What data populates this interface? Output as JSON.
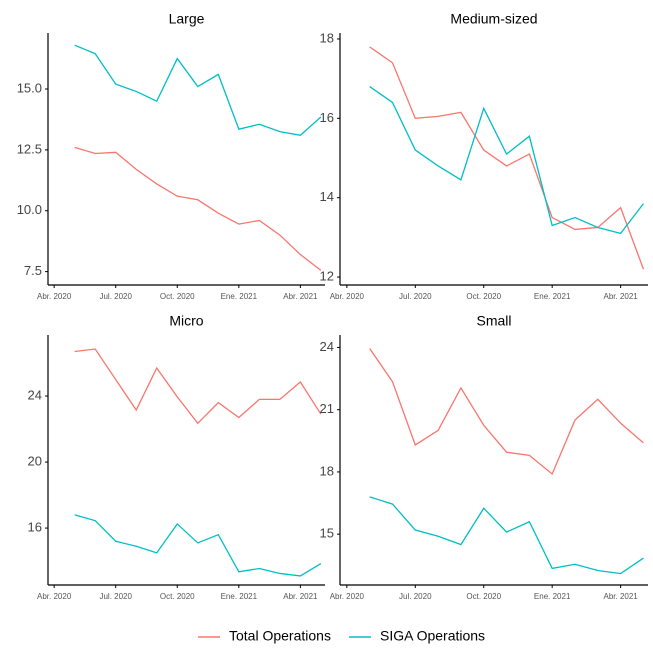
{
  "chart_data": [
    {
      "type": "line",
      "title": "Large",
      "x": [
        1,
        2,
        3,
        4,
        5,
        6,
        7,
        8,
        9,
        10,
        11,
        12,
        13
      ],
      "series": [
        {
          "name": "Total Operations",
          "color": "#f8766d",
          "values": [
            12.6,
            12.35,
            12.4,
            11.7,
            11.1,
            10.6,
            10.45,
            9.9,
            9.45,
            9.6,
            9.0,
            8.2,
            7.55
          ]
        },
        {
          "name": "SIGA Operations",
          "color": "#00bfc4",
          "values": [
            16.8,
            16.45,
            15.2,
            14.9,
            14.5,
            16.25,
            15.1,
            15.6,
            13.35,
            13.55,
            13.25,
            13.1,
            13.85
          ]
        }
      ],
      "xlim": [
        -0.3,
        13.2
      ],
      "xticks": [
        {
          "value": 0,
          "label": "Abr. 2020"
        },
        {
          "value": 3,
          "label": "Jul. 2020"
        },
        {
          "value": 6,
          "label": "Oct. 2020"
        },
        {
          "value": 9,
          "label": "Ene. 2021"
        },
        {
          "value": 12,
          "label": "Abr. 2021"
        }
      ],
      "ylim": [
        6.95,
        17.3
      ],
      "yticks": [
        {
          "value": 7.5,
          "label": "7.5"
        },
        {
          "value": 10,
          "label": "10.0"
        },
        {
          "value": 12.5,
          "label": "12.5"
        },
        {
          "value": 15,
          "label": "15.0"
        }
      ]
    },
    {
      "type": "line",
      "title": "Medium-sized",
      "x": [
        1,
        2,
        3,
        4,
        5,
        6,
        7,
        8,
        9,
        10,
        11,
        12,
        13
      ],
      "series": [
        {
          "name": "Total Operations",
          "color": "#f8766d",
          "values": [
            17.8,
            17.4,
            16.0,
            16.05,
            16.15,
            15.2,
            14.8,
            15.1,
            13.5,
            13.2,
            13.25,
            13.75,
            12.2
          ]
        },
        {
          "name": "SIGA Operations",
          "color": "#00bfc4",
          "values": [
            16.8,
            16.4,
            15.2,
            14.8,
            14.45,
            16.25,
            15.1,
            15.55,
            13.3,
            13.5,
            13.25,
            13.1,
            13.85
          ]
        }
      ],
      "xlim": [
        -0.3,
        13.2
      ],
      "xticks": [
        {
          "value": 0,
          "label": "Abr. 2020"
        },
        {
          "value": 3,
          "label": "Jul. 2020"
        },
        {
          "value": 6,
          "label": "Oct. 2020"
        },
        {
          "value": 9,
          "label": "Ene. 2021"
        },
        {
          "value": 12,
          "label": "Abr. 2021"
        }
      ],
      "ylim": [
        11.8,
        18.15
      ],
      "yticks": [
        12,
        14,
        16,
        18
      ]
    },
    {
      "type": "line",
      "title": "Micro",
      "x": [
        1,
        2,
        3,
        4,
        5,
        6,
        7,
        8,
        9,
        10,
        11,
        12,
        13
      ],
      "series": [
        {
          "name": "Total Operations",
          "color": "#f8766d",
          "values": [
            26.7,
            26.85,
            25.0,
            23.15,
            25.7,
            23.95,
            22.35,
            23.6,
            22.7,
            23.8,
            23.8,
            24.85,
            22.9
          ]
        },
        {
          "name": "SIGA Operations",
          "color": "#00bfc4",
          "values": [
            16.8,
            16.45,
            15.2,
            14.9,
            14.5,
            16.25,
            15.1,
            15.6,
            13.35,
            13.55,
            13.25,
            13.1,
            13.85
          ]
        }
      ],
      "xlim": [
        -0.3,
        13.2
      ],
      "xticks": [
        {
          "value": 0,
          "label": "Abr. 2020"
        },
        {
          "value": 3,
          "label": "Jul. 2020"
        },
        {
          "value": 6,
          "label": "Oct. 2020"
        },
        {
          "value": 9,
          "label": "Ene. 2021"
        },
        {
          "value": 12,
          "label": "Abr. 2021"
        }
      ],
      "ylim": [
        12.55,
        27.7
      ],
      "yticks": [
        16,
        20,
        24
      ]
    },
    {
      "type": "line",
      "title": "Small",
      "x": [
        1,
        2,
        3,
        4,
        5,
        6,
        7,
        8,
        9,
        10,
        11,
        12,
        13
      ],
      "series": [
        {
          "name": "Total Operations",
          "color": "#f8766d",
          "values": [
            23.95,
            22.35,
            19.3,
            20.0,
            22.05,
            20.25,
            18.95,
            18.8,
            17.9,
            20.5,
            21.5,
            20.35,
            19.4
          ]
        },
        {
          "name": "SIGA Operations",
          "color": "#00bfc4",
          "values": [
            16.8,
            16.45,
            15.2,
            14.9,
            14.5,
            16.25,
            15.1,
            15.6,
            13.35,
            13.55,
            13.25,
            13.1,
            13.85
          ]
        }
      ],
      "xlim": [
        -0.3,
        13.2
      ],
      "xticks": [
        {
          "value": 0,
          "label": "Abr. 2020"
        },
        {
          "value": 3,
          "label": "Jul. 2020"
        },
        {
          "value": 6,
          "label": "Oct. 2020"
        },
        {
          "value": 9,
          "label": "Ene. 2021"
        },
        {
          "value": 12,
          "label": "Abr. 2021"
        }
      ],
      "ylim": [
        12.55,
        24.6
      ],
      "yticks": [
        15,
        18,
        21,
        24
      ]
    }
  ]
}
